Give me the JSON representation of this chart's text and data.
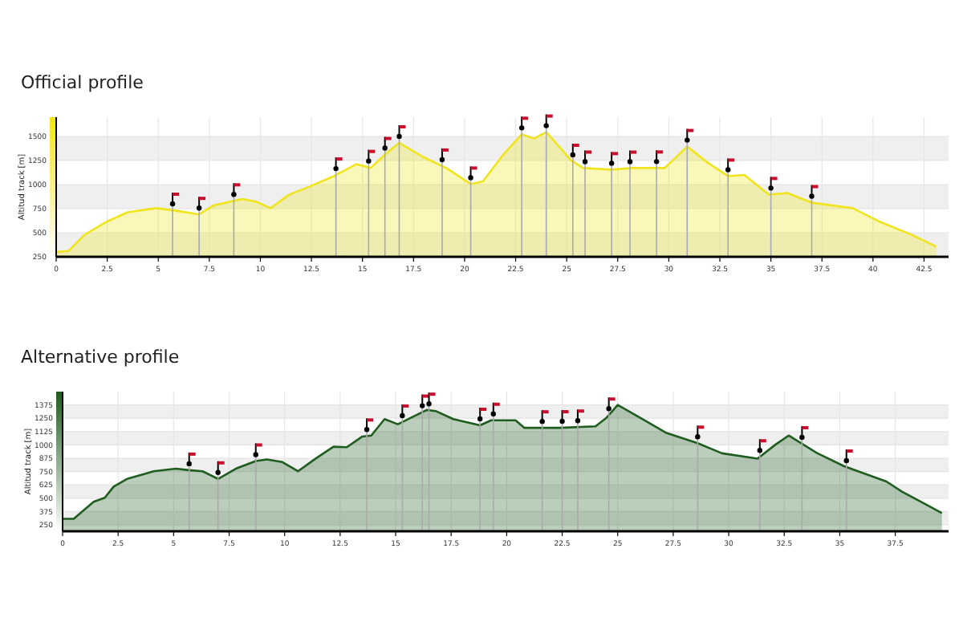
{
  "chart_data": [
    {
      "type": "area",
      "title": "Official profile",
      "ylabel": "Altitud track [m]",
      "xlim": [
        0,
        43.7
      ],
      "ylim": [
        250,
        1700
      ],
      "xticks": [
        0,
        2.5,
        5,
        7.5,
        10,
        12.5,
        15,
        17.5,
        20,
        22.5,
        25,
        27.5,
        30,
        32.5,
        35,
        37.5,
        40,
        42.5
      ],
      "yticks": [
        250,
        500,
        750,
        1000,
        1250,
        1500
      ],
      "grid": true,
      "series": [
        {
          "color": "#f0e41c",
          "x": [
            0,
            0.6,
            1.4,
            2.5,
            3.5,
            4.9,
            5.9,
            7.0,
            7.7,
            9.1,
            9.8,
            10.5,
            11.4,
            12.4,
            13.6,
            14.7,
            15.4,
            16.1,
            16.8,
            18.0,
            19.1,
            20.3,
            20.9,
            21.9,
            22.8,
            23.4,
            24.0,
            25.2,
            25.8,
            27.2,
            28.2,
            29.8,
            30.9,
            31.9,
            32.9,
            33.7,
            34.9,
            35.8,
            37.0,
            39.0,
            40.3,
            41.9,
            43.1
          ],
          "values": [
            300,
            310,
            480,
            617,
            712,
            755,
            728,
            690,
            783,
            850,
            822,
            755,
            895,
            978,
            1088,
            1212,
            1172,
            1312,
            1433,
            1283,
            1172,
            1005,
            1033,
            1312,
            1522,
            1478,
            1545,
            1255,
            1172,
            1155,
            1172,
            1172,
            1395,
            1228,
            1088,
            1100,
            895,
            912,
            812,
            755,
            617,
            478,
            355
          ]
        }
      ],
      "ref_lines": [
        {
          "axis": "x",
          "value": 5.7,
          "color": "#aaaaaa"
        },
        {
          "axis": "x",
          "value": 7.0,
          "color": "#aaaaaa"
        },
        {
          "axis": "x",
          "value": 8.7,
          "color": "#aaaaaa"
        },
        {
          "axis": "x",
          "value": 13.7,
          "color": "#aaaaaa"
        },
        {
          "axis": "x",
          "value": 15.3,
          "color": "#aaaaaa"
        },
        {
          "axis": "x",
          "value": 16.1,
          "color": "#aaaaaa"
        },
        {
          "axis": "x",
          "value": 16.8,
          "color": "#aaaaaa"
        },
        {
          "axis": "x",
          "value": 18.9,
          "color": "#aaaaaa"
        },
        {
          "axis": "x",
          "value": 20.3,
          "color": "#aaaaaa"
        },
        {
          "axis": "x",
          "value": 22.8,
          "color": "#aaaaaa"
        },
        {
          "axis": "x",
          "value": 24.0,
          "color": "#aaaaaa"
        },
        {
          "axis": "x",
          "value": 25.3,
          "color": "#aaaaaa"
        },
        {
          "axis": "x",
          "value": 25.9,
          "color": "#aaaaaa"
        },
        {
          "axis": "x",
          "value": 27.2,
          "color": "#aaaaaa"
        },
        {
          "axis": "x",
          "value": 28.1,
          "color": "#aaaaaa"
        },
        {
          "axis": "x",
          "value": 29.4,
          "color": "#aaaaaa"
        },
        {
          "axis": "x",
          "value": 30.9,
          "color": "#aaaaaa"
        },
        {
          "axis": "x",
          "value": 32.9,
          "color": "#aaaaaa"
        },
        {
          "axis": "x",
          "value": 35.0,
          "color": "#aaaaaa"
        },
        {
          "axis": "x",
          "value": 37.0,
          "color": "#aaaaaa"
        }
      ]
    },
    {
      "type": "area",
      "title": "Alternative profile",
      "ylabel": "Altitud track [m]",
      "xlim": [
        0,
        39.9
      ],
      "ylim": [
        190,
        1500
      ],
      "xticks": [
        0,
        2.5,
        5,
        7.5,
        10,
        12.5,
        15,
        17.5,
        20,
        22.5,
        25,
        27.5,
        30,
        32.5,
        35,
        37.5
      ],
      "yticks": [
        250,
        375,
        500,
        625,
        750,
        875,
        1000,
        1125,
        1250,
        1375
      ],
      "grid": true,
      "series": [
        {
          "color": "#1f5c1f",
          "x": [
            0,
            0.5,
            1.4,
            1.9,
            2.3,
            2.9,
            3.7,
            4.1,
            5.1,
            5.7,
            6.3,
            7.0,
            7.8,
            8.7,
            9.2,
            9.9,
            10.6,
            11.4,
            12.2,
            12.8,
            13.5,
            13.9,
            14.5,
            15.1,
            15.7,
            16.4,
            16.8,
            17.6,
            18.8,
            19.3,
            20.4,
            20.8,
            22.4,
            24.0,
            24.5,
            25.0,
            26.0,
            27.2,
            28.6,
            29.7,
            31.3,
            32.1,
            32.7,
            34.0,
            35.2,
            37.1,
            37.8,
            38.8,
            39.6
          ],
          "values": [
            307,
            307,
            466,
            504,
            609,
            681,
            729,
            753,
            777,
            763,
            753,
            681,
            777,
            849,
            864,
            839,
            753,
            872,
            983,
            979,
            1079,
            1088,
            1242,
            1194,
            1256,
            1328,
            1318,
            1242,
            1184,
            1231,
            1231,
            1160,
            1160,
            1174,
            1256,
            1375,
            1256,
            1112,
            1016,
            921,
            872,
            1002,
            1088,
            921,
            800,
            657,
            562,
            451,
            361
          ]
        }
      ],
      "ref_lines": [
        {
          "axis": "x",
          "value": 5.7,
          "color": "#aaaaaa"
        },
        {
          "axis": "x",
          "value": 7.0,
          "color": "#aaaaaa"
        },
        {
          "axis": "x",
          "value": 8.7,
          "color": "#aaaaaa"
        },
        {
          "axis": "x",
          "value": 13.7,
          "color": "#aaaaaa"
        },
        {
          "axis": "x",
          "value": 15.3,
          "color": "#aaaaaa"
        },
        {
          "axis": "x",
          "value": 16.2,
          "color": "#aaaaaa"
        },
        {
          "axis": "x",
          "value": 16.5,
          "color": "#aaaaaa"
        },
        {
          "axis": "x",
          "value": 18.8,
          "color": "#aaaaaa"
        },
        {
          "axis": "x",
          "value": 19.4,
          "color": "#aaaaaa"
        },
        {
          "axis": "x",
          "value": 21.6,
          "color": "#aaaaaa"
        },
        {
          "axis": "x",
          "value": 22.5,
          "color": "#aaaaaa"
        },
        {
          "axis": "x",
          "value": 23.2,
          "color": "#aaaaaa"
        },
        {
          "axis": "x",
          "value": 24.6,
          "color": "#aaaaaa"
        },
        {
          "axis": "x",
          "value": 28.6,
          "color": "#aaaaaa"
        },
        {
          "axis": "x",
          "value": 31.4,
          "color": "#aaaaaa"
        },
        {
          "axis": "x",
          "value": 33.3,
          "color": "#aaaaaa"
        },
        {
          "axis": "x",
          "value": 35.3,
          "color": "#aaaaaa"
        }
      ]
    }
  ]
}
